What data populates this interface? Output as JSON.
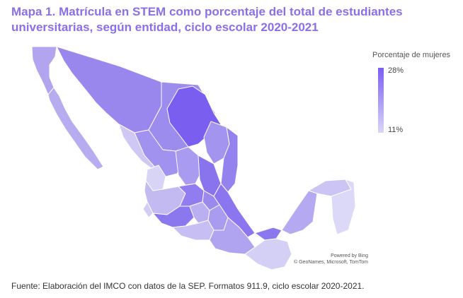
{
  "title": "Mapa 1. Matrícula en STEM como porcentaje del total de estudiantes universitarias, según entidad, ciclo escolar 2020-2021",
  "legend": {
    "title": "Porcentaje de mujeres",
    "max_label": "28%",
    "min_label": "11%",
    "max_color": "#7b5ef2",
    "min_color": "#d9d6f7"
  },
  "attribution": {
    "line1": "Powered by Bing",
    "line2": "© GeoNames, Microsoft, TomTom"
  },
  "source": "Fuente: Elaboración del IMCO con datos de la SEP. Formatos 911.9, ciclo escolar 2020-2021."
}
